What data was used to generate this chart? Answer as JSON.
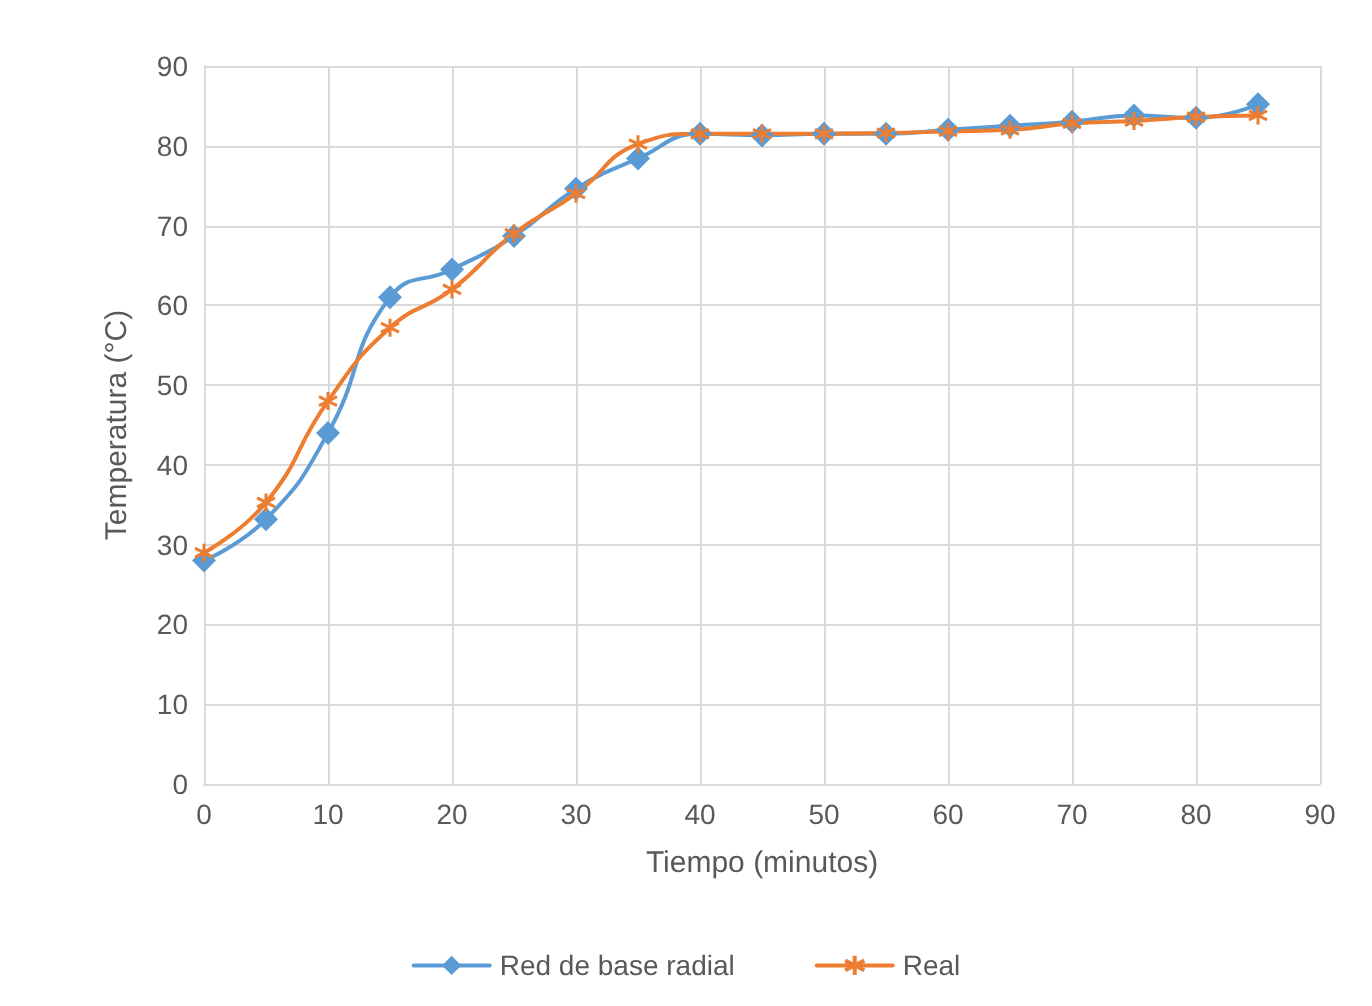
{
  "chart_data": {
    "type": "line",
    "xlabel": "Tiempo (minutos)",
    "ylabel": "Temperatura (°C)",
    "x": [
      0,
      5,
      10,
      15,
      20,
      25,
      30,
      35,
      40,
      45,
      50,
      55,
      60,
      65,
      70,
      75,
      80,
      85
    ],
    "series": [
      {
        "name": "Red de base radial",
        "color": "#5b9bd5",
        "marker": "diamond",
        "values": [
          28,
          33.2,
          44,
          61,
          64.5,
          68.7,
          74.6,
          78.4,
          81.5,
          81.3,
          81.5,
          81.5,
          82,
          82.5,
          83,
          83.8,
          83.5,
          85.2
        ]
      },
      {
        "name": "Real",
        "color": "#ed7d31",
        "marker": "cross",
        "values": [
          29,
          35.3,
          48,
          57.2,
          62,
          69,
          74,
          80.2,
          81.5,
          81.5,
          81.5,
          81.6,
          81.8,
          82,
          82.8,
          83.1,
          83.6,
          83.8
        ]
      }
    ],
    "xlim": [
      0,
      90
    ],
    "xticks": [
      0,
      10,
      20,
      30,
      40,
      50,
      60,
      70,
      80,
      90
    ],
    "ylim": [
      0,
      90
    ],
    "yticks": [
      0,
      10,
      20,
      30,
      40,
      50,
      60,
      70,
      80,
      90
    ],
    "grid": true,
    "legend": "bottom",
    "line_style": "solid"
  }
}
